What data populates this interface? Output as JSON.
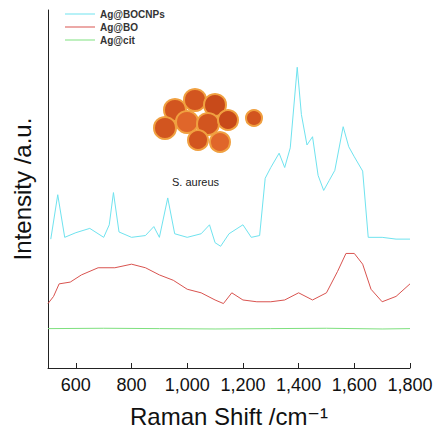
{
  "chart_data": {
    "type": "line",
    "x_label": "Raman Shift /cm⁻¹",
    "y_label": "Intensity /a.u.",
    "annotation": "S. aureus",
    "xlim": [
      500,
      1800
    ],
    "xticks": [
      600,
      800,
      1000,
      1200,
      1400,
      1600,
      1800
    ],
    "ylim": [
      0,
      100
    ],
    "tick_labels": "x",
    "grid": false,
    "legend": "top-left",
    "series": [
      {
        "name": "Ag@BOCNPs",
        "color": "#6fe3ef",
        "x": [
          510,
          535,
          560,
          600,
          650,
          700,
          720,
          735,
          755,
          800,
          850,
          880,
          900,
          930,
          955,
          1000,
          1050,
          1080,
          1100,
          1120,
          1150,
          1200,
          1230,
          1260,
          1280,
          1300,
          1330,
          1350,
          1370,
          1395,
          1410,
          1430,
          1450,
          1470,
          1490,
          1510,
          1530,
          1560,
          1580,
          1600,
          1630,
          1650,
          1700,
          1750,
          1800
        ],
        "values": [
          36,
          48.4,
          36.5,
          37.8,
          39,
          36.5,
          40,
          49,
          38,
          36.5,
          37,
          39.5,
          36.5,
          47.5,
          37.5,
          36.5,
          37.5,
          40,
          35,
          34,
          37.5,
          40,
          36.5,
          37,
          53,
          56,
          60,
          56,
          61.5,
          84,
          70.8,
          62.3,
          64.6,
          53.8,
          49.6,
          52.4,
          55.2,
          67.4,
          61.8,
          59,
          55,
          36.5,
          36.5,
          36,
          36
        ]
      },
      {
        "name": "Ag@BO",
        "color": "#d9534f",
        "x": [
          500,
          520,
          540,
          580,
          620,
          680,
          740,
          800,
          850,
          900,
          950,
          1000,
          1050,
          1100,
          1130,
          1160,
          1200,
          1250,
          1300,
          1350,
          1400,
          1450,
          1500,
          1540,
          1570,
          1600,
          1630,
          1660,
          1700,
          1750,
          1800
        ],
        "values": [
          18,
          20,
          23.5,
          24,
          26,
          28,
          28,
          29,
          28,
          26,
          24.5,
          22,
          21,
          19,
          18,
          21,
          19,
          18.5,
          18.5,
          19,
          21,
          19,
          21,
          27,
          32,
          32,
          29,
          22,
          18.5,
          20,
          23.5
        ]
      },
      {
        "name": "Ag@cit",
        "color": "#7ee07e",
        "x": [
          500,
          700,
          900,
          1100,
          1300,
          1500,
          1700,
          1800
        ],
        "values": [
          11,
          11.1,
          11,
          10.9,
          11,
          11.1,
          10.9,
          11
        ]
      }
    ]
  }
}
